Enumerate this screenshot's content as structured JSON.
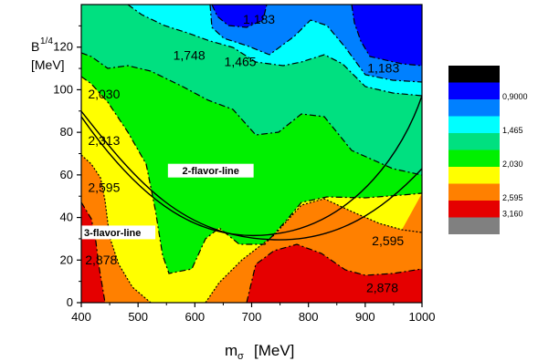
{
  "chart_data": {
    "type": "heatmap",
    "subtype": "filled-contour",
    "xlabel_main": "m",
    "xlabel_sub": "σ",
    "xlabel_unit": "[MeV]",
    "ylabel_main": "B",
    "ylabel_sup": "1/4",
    "ylabel_unit": "[MeV]",
    "xlim": [
      400,
      1000
    ],
    "ylim": [
      0,
      140
    ],
    "xticks": [
      "400",
      "500",
      "600",
      "700",
      "800",
      "900",
      "1000"
    ],
    "yticks": [
      "0",
      "20",
      "40",
      "60",
      "80",
      "100",
      "120"
    ],
    "grid": false,
    "legend_placement": "right",
    "levels": [
      {
        "color": "#e50000",
        "label": ""
      },
      {
        "color": "#ff8000",
        "label": "2,595"
      },
      {
        "color": "#ffff00",
        "label": ""
      },
      {
        "color": "#00f000",
        "label": "2,030"
      },
      {
        "color": "#00e080",
        "label": ""
      },
      {
        "color": "#00ffff",
        "label": "1,465"
      },
      {
        "color": "#0080ff",
        "label": ""
      },
      {
        "color": "#0000ff",
        "label": "0,9000"
      },
      {
        "color": "#000000",
        "label": ""
      }
    ],
    "legend_extra": [
      {
        "color": "#808080",
        "label": ""
      },
      {
        "color": "#e50000",
        "label": "3,160"
      }
    ],
    "contour_labels": [
      {
        "text": "1,183",
        "x": 713,
        "y": 131
      },
      {
        "text": "1,748",
        "x": 590,
        "y": 114
      },
      {
        "text": "1,465",
        "x": 680,
        "y": 111
      },
      {
        "text": "1,183",
        "x": 932,
        "y": 108
      },
      {
        "text": "2,030",
        "x": 440,
        "y": 96
      },
      {
        "text": "2,313",
        "x": 440,
        "y": 74
      },
      {
        "text": "2,595",
        "x": 440,
        "y": 52
      },
      {
        "text": "2,595",
        "x": 940,
        "y": 27
      },
      {
        "text": "2,878",
        "x": 435,
        "y": 18
      },
      {
        "text": "2,878",
        "x": 930,
        "y": 5
      }
    ],
    "annotations": [
      {
        "text": "2-flavor-line",
        "x": 628,
        "y": 62
      },
      {
        "text": "3-flavor-line",
        "x": 455,
        "y": 33
      }
    ]
  }
}
